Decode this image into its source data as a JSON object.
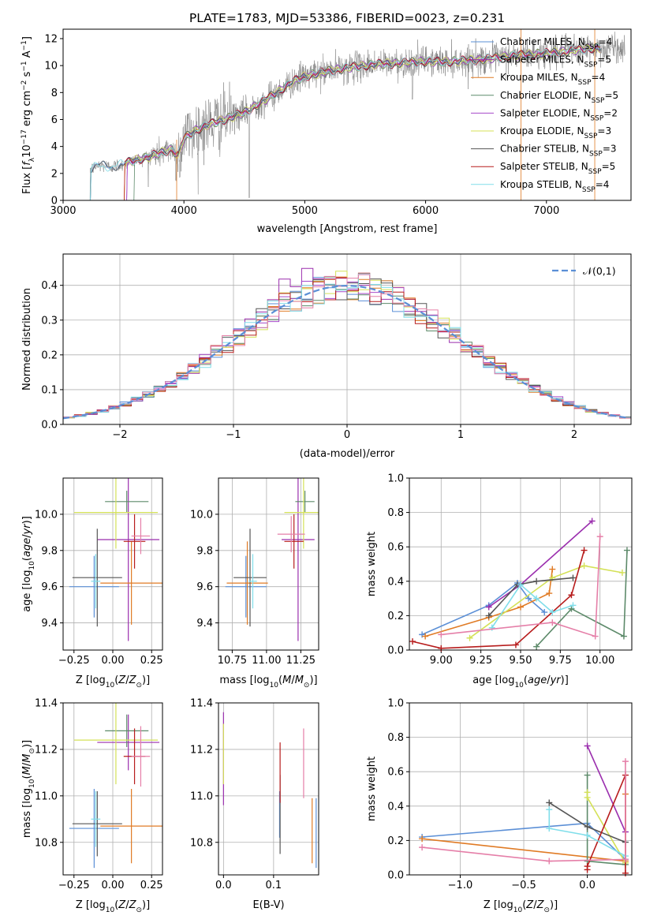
{
  "figure_title": "PLATE=1783, MJD=53386, FIBERID=0023, z=0.231",
  "colors": {
    "Chabrier MILES": "#5b8fd6",
    "Salpeter MILES": "#9b2fae",
    "Kroupa MILES": "#e07b25",
    "Chabrier ELODIE": "#5d8a6a",
    "Salpeter ELODIE": "#a64ac9",
    "Kroupa ELODIE": "#d4e157",
    "Chabrier STELIB": "#555555",
    "Salpeter STELIB": "#b71c1c",
    "Kroupa STELIB": "#80deea",
    "Salpeter pink": "#e57fa8",
    "gaussian": "#5b8fd6",
    "spectrum": "#808080"
  },
  "chart_data": [
    {
      "type": "line",
      "panel": "spectrum",
      "title": "PLATE=1783, MJD=53386, FIBERID=0023, z=0.231",
      "xlabel": "wavelength [Angstrom, rest frame]",
      "ylabel": "Flux [f_λ 10^-17 erg cm^-2 s^-1 A^-1]",
      "xlim": [
        3000,
        7700
      ],
      "ylim": [
        0,
        12.7
      ],
      "xticks": [
        "3000",
        "4000",
        "5000",
        "6000",
        "7000"
      ],
      "yticks": [
        "0",
        "2",
        "4",
        "6",
        "8",
        "10",
        "12"
      ],
      "legend": "right",
      "series": [
        {
          "name": "Chabrier MILES, N_SSP=4"
        },
        {
          "name": "Salpeter MILES, N_SSP=5"
        },
        {
          "name": "Kroupa MILES, N_SSP=4"
        },
        {
          "name": "Chabrier ELODIE, N_SSP=5"
        },
        {
          "name": "Salpeter ELODIE, N_SSP=2"
        },
        {
          "name": "Kroupa ELODIE, N_SSP=3"
        },
        {
          "name": "Chabrier STELIB, N_SSP=3"
        },
        {
          "name": "Salpeter STELIB, N_SSP=5"
        },
        {
          "name": "Kroupa STELIB, N_SSP=4"
        }
      ],
      "continuum": {
        "x": [
          3220,
          3300,
          3400,
          3500,
          3600,
          3700,
          3800,
          3900,
          3950,
          4000,
          4100,
          4200,
          4300,
          4500,
          4700,
          4900,
          5000,
          5200,
          5400,
          5600,
          5800,
          6000,
          6200,
          6400,
          6600,
          6800,
          7000,
          7200,
          7400
        ],
        "y": [
          2.3,
          2.6,
          2.5,
          2.7,
          3.0,
          3.2,
          3.5,
          3.8,
          3.3,
          4.6,
          5.2,
          5.6,
          5.9,
          6.5,
          7.6,
          8.8,
          9.2,
          9.6,
          9.9,
          10.1,
          10.2,
          10.3,
          10.3,
          10.4,
          10.6,
          10.8,
          10.9,
          11.1,
          11.3
        ]
      }
    },
    {
      "type": "histogram",
      "panel": "residuals",
      "xlabel": "(data-model)/error",
      "ylabel": "Normed distribution",
      "xlim": [
        -2.5,
        2.5
      ],
      "ylim": [
        0,
        0.49
      ],
      "xticks": [
        "−2",
        "−1",
        "0",
        "1",
        "2"
      ],
      "yticks": [
        "0.0",
        "0.1",
        "0.2",
        "0.3",
        "0.4"
      ],
      "legend": "top-right",
      "reference": {
        "name": "𝒩(0,1)",
        "style": "dashed"
      }
    },
    {
      "type": "scatter",
      "panel": "age-vs-Z",
      "xlabel": "Z [log10(Z/Z⊙)]",
      "ylabel": "age [log10(age/yr)]",
      "xlim": [
        -0.32,
        0.32
      ],
      "ylim": [
        9.25,
        10.2
      ],
      "xticks": [
        "−0.25",
        "0.00",
        "0.25"
      ],
      "yticks": [
        "9.4",
        "9.6",
        "9.8",
        "10.0"
      ],
      "points": [
        {
          "c": "#5b8fd6",
          "x": -0.12,
          "y": 9.6,
          "dx": 0.16,
          "dy": 0.17
        },
        {
          "c": "#9b2fae",
          "x": 0.1,
          "y": 9.86,
          "dx": 0.2,
          "dy": 0.56
        },
        {
          "c": "#e07b25",
          "x": 0.12,
          "y": 9.62,
          "dx": 0.2,
          "dy": 0.23
        },
        {
          "c": "#5d8a6a",
          "x": 0.09,
          "y": 10.07,
          "dx": 0.14,
          "dy": 0.06
        },
        {
          "c": "#d4e157",
          "x": 0.02,
          "y": 10.01,
          "dx": 0.27,
          "dy": 0.2
        },
        {
          "c": "#555555",
          "x": -0.1,
          "y": 9.65,
          "dx": 0.16,
          "dy": 0.27
        },
        {
          "c": "#b71c1c",
          "x": 0.14,
          "y": 9.85,
          "dx": 0.07,
          "dy": 0.15
        },
        {
          "c": "#80deea",
          "x": -0.11,
          "y": 9.63,
          "dx": 0.03,
          "dy": 0.15
        },
        {
          "c": "#e57fa8",
          "x": 0.18,
          "y": 9.88,
          "dx": 0.06,
          "dy": 0.1
        }
      ]
    },
    {
      "type": "scatter",
      "panel": "age-vs-mass",
      "xlabel": "mass [log10(M/M⊙)]",
      "ylabel": "",
      "xlim": [
        10.65,
        11.38
      ],
      "ylim": [
        9.25,
        10.2
      ],
      "xticks": [
        "10.75",
        "11.00",
        "11.25"
      ],
      "yticks": [
        "9.4",
        "9.6",
        "9.8",
        "10.0"
      ],
      "points": [
        {
          "c": "#5b8fd6",
          "x": 10.85,
          "y": 9.6,
          "dx": 0.15,
          "dy": 0.17
        },
        {
          "c": "#9b2fae",
          "x": 11.23,
          "y": 9.86,
          "dx": 0.12,
          "dy": 0.56
        },
        {
          "c": "#e07b25",
          "x": 10.86,
          "y": 9.62,
          "dx": 0.15,
          "dy": 0.23
        },
        {
          "c": "#5d8a6a",
          "x": 11.28,
          "y": 10.07,
          "dx": 0.07,
          "dy": 0.06
        },
        {
          "c": "#d4e157",
          "x": 11.27,
          "y": 10.01,
          "dx": 0.14,
          "dy": 0.2
        },
        {
          "c": "#555555",
          "x": 10.88,
          "y": 9.65,
          "dx": 0.12,
          "dy": 0.27
        },
        {
          "c": "#b71c1c",
          "x": 11.2,
          "y": 9.85,
          "dx": 0.07,
          "dy": 0.15
        },
        {
          "c": "#80deea",
          "x": 10.9,
          "y": 9.63,
          "dx": 0.03,
          "dy": 0.15
        },
        {
          "c": "#e57fa8",
          "x": 11.18,
          "y": 9.89,
          "dx": 0.1,
          "dy": 0.1
        }
      ]
    },
    {
      "type": "line",
      "panel": "mass-weight-vs-age",
      "xlabel": "age [log10(age/yr)]",
      "ylabel": "mass weight",
      "xlim": [
        8.8,
        10.2
      ],
      "ylim": [
        0,
        1.0
      ],
      "xticks": [
        "9.00",
        "9.25",
        "9.50",
        "9.75",
        "10.00"
      ],
      "yticks": [
        "0.0",
        "0.2",
        "0.4",
        "0.6",
        "0.8",
        "1.0"
      ],
      "series": [
        {
          "c": "#5b8fd6",
          "x": [
            8.88,
            9.3,
            9.48,
            9.55,
            9.65
          ],
          "y": [
            0.09,
            0.26,
            0.39,
            0.3,
            0.22
          ]
        },
        {
          "c": "#9b2fae",
          "x": [
            9.3,
            9.5,
            9.95
          ],
          "y": [
            0.25,
            0.38,
            0.75
          ]
        },
        {
          "c": "#e07b25",
          "x": [
            8.9,
            9.3,
            9.5,
            9.68,
            9.7
          ],
          "y": [
            0.08,
            0.19,
            0.25,
            0.33,
            0.47
          ]
        },
        {
          "c": "#5d8a6a",
          "x": [
            9.6,
            9.82,
            10.15,
            10.17
          ],
          "y": [
            0.02,
            0.24,
            0.08,
            0.58
          ]
        },
        {
          "c": "#d4e157",
          "x": [
            9.18,
            9.7,
            9.9,
            10.14
          ],
          "y": [
            0.07,
            0.42,
            0.49,
            0.45
          ]
        },
        {
          "c": "#555555",
          "x": [
            9.3,
            9.48,
            9.6,
            9.83
          ],
          "y": [
            0.2,
            0.38,
            0.4,
            0.42
          ]
        },
        {
          "c": "#b71c1c",
          "x": [
            8.82,
            9.0,
            9.47,
            9.82,
            9.9
          ],
          "y": [
            0.05,
            0.01,
            0.03,
            0.32,
            0.58
          ]
        },
        {
          "c": "#80deea",
          "x": [
            9.32,
            9.5,
            9.6,
            9.7,
            9.83
          ],
          "y": [
            0.13,
            0.38,
            0.3,
            0.22,
            0.26
          ]
        },
        {
          "c": "#e57fa8",
          "x": [
            9.0,
            9.7,
            9.97,
            10.0
          ],
          "y": [
            0.09,
            0.16,
            0.08,
            0.66
          ]
        }
      ]
    },
    {
      "type": "scatter",
      "panel": "mass-vs-Z",
      "xlabel": "Z [log10(Z/Z⊙)]",
      "ylabel": "mass [log10(M/M⊙)]",
      "xlim": [
        -0.32,
        0.32
      ],
      "ylim": [
        10.66,
        11.4
      ],
      "xticks": [
        "−0.25",
        "0.00",
        "0.25"
      ],
      "yticks": [
        "10.8",
        "11.0",
        "11.2",
        "11.4"
      ],
      "points": [
        {
          "c": "#5b8fd6",
          "x": -0.12,
          "y": 10.86,
          "dx": 0.16,
          "dy": 0.17
        },
        {
          "c": "#9b2fae",
          "x": 0.1,
          "y": 11.23,
          "dx": 0.2,
          "dy": 0.12
        },
        {
          "c": "#e07b25",
          "x": 0.12,
          "y": 10.87,
          "dx": 0.2,
          "dy": 0.16
        },
        {
          "c": "#5d8a6a",
          "x": 0.09,
          "y": 11.28,
          "dx": 0.14,
          "dy": 0.07
        },
        {
          "c": "#d4e157",
          "x": 0.02,
          "y": 11.24,
          "dx": 0.27,
          "dy": 0.19
        },
        {
          "c": "#555555",
          "x": -0.1,
          "y": 10.88,
          "dx": 0.16,
          "dy": 0.14
        },
        {
          "c": "#b71c1c",
          "x": 0.14,
          "y": 11.17,
          "dx": 0.07,
          "dy": 0.12
        },
        {
          "c": "#80deea",
          "x": -0.11,
          "y": 10.9,
          "dx": 0.03,
          "dy": 0.12
        },
        {
          "c": "#e57fa8",
          "x": 0.18,
          "y": 11.17,
          "dx": 0.06,
          "dy": 0.13
        }
      ]
    },
    {
      "type": "scatter",
      "panel": "mass-vs-EBV",
      "xlabel": "E(B-V)",
      "ylabel": "",
      "xlim": [
        -0.01,
        0.19
      ],
      "ylim": [
        10.66,
        11.4
      ],
      "xticks": [
        "0.0",
        "0.1"
      ],
      "yticks": [
        "10.8",
        "11.0",
        "11.2",
        "11.4"
      ],
      "points": [
        {
          "c": "#9b2fae",
          "x": 0.0,
          "y": 11.16,
          "dx": 0.0,
          "dy": 0.2
        },
        {
          "c": "#d4e157",
          "x": 0.0,
          "y": 11.18,
          "dx": 0.0,
          "dy": 0.13
        },
        {
          "c": "#5b8fd6",
          "x": 0.112,
          "y": 10.92,
          "dx": 0.0,
          "dy": 0.1
        },
        {
          "c": "#555555",
          "x": 0.113,
          "y": 10.92,
          "dx": 0.0,
          "dy": 0.17
        },
        {
          "c": "#b71c1c",
          "x": 0.113,
          "y": 11.1,
          "dx": 0.0,
          "dy": 0.13
        },
        {
          "c": "#e57fa8",
          "x": 0.16,
          "y": 11.14,
          "dx": 0.0,
          "dy": 0.15
        },
        {
          "c": "#e07b25",
          "x": 0.177,
          "y": 10.85,
          "dx": 0.0,
          "dy": 0.14
        },
        {
          "c": "#5b8fd6",
          "x": 0.185,
          "y": 10.84,
          "dx": 0.0,
          "dy": 0.15
        }
      ]
    },
    {
      "type": "line",
      "panel": "mass-weight-vs-Z",
      "xlabel": "Z [log10(Z/Z⊙)]",
      "ylabel": "mass weight",
      "xlim": [
        -1.4,
        0.35
      ],
      "ylim": [
        0,
        1.0
      ],
      "xticks": [
        "−1.0",
        "−0.5",
        "0.0"
      ],
      "yticks": [
        "0.0",
        "0.2",
        "0.4",
        "0.6",
        "0.8",
        "1.0"
      ],
      "series": [
        {
          "c": "#5b8fd6",
          "x": [
            -1.3,
            0.0,
            0.3
          ],
          "y": [
            0.22,
            0.3,
            0.09
          ]
        },
        {
          "c": "#9b2fae",
          "x": [
            0.0,
            0.3
          ],
          "y": [
            0.75,
            0.25
          ]
        },
        {
          "c": "#e07b25",
          "x": [
            -1.3,
            0.3,
            0.3
          ],
          "y": [
            0.21,
            0.08,
            0.47
          ]
        },
        {
          "c": "#5d8a6a",
          "x": [
            0.0,
            0.0,
            0.3
          ],
          "y": [
            0.58,
            0.08,
            0.06
          ]
        },
        {
          "c": "#d4e157",
          "x": [
            0.0,
            0.0,
            0.3
          ],
          "y": [
            0.48,
            0.45,
            0.07
          ]
        },
        {
          "c": "#555555",
          "x": [
            -0.3,
            0.0,
            0.3
          ],
          "y": [
            0.42,
            0.28,
            0.19
          ]
        },
        {
          "c": "#b71c1c",
          "x": [
            0.0,
            0.0,
            0.3,
            0.3
          ],
          "y": [
            0.03,
            0.05,
            0.58,
            0.01
          ]
        },
        {
          "c": "#80deea",
          "x": [
            -0.3,
            -0.3,
            0.0,
            0.3
          ],
          "y": [
            0.38,
            0.27,
            0.23,
            0.11
          ]
        },
        {
          "c": "#e57fa8",
          "x": [
            -1.3,
            -0.3,
            0.3,
            0.3
          ],
          "y": [
            0.16,
            0.08,
            0.09,
            0.66
          ]
        }
      ]
    }
  ]
}
